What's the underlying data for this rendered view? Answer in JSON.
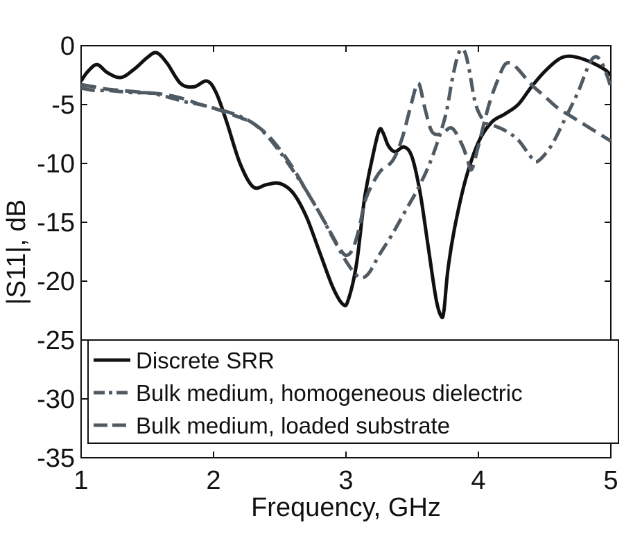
{
  "chart_data": {
    "type": "line",
    "xlabel": "Frequency, GHz",
    "ylabel": "|S11|, dB",
    "xlim": [
      1,
      5
    ],
    "ylim": [
      -35,
      0
    ],
    "xticks": [
      1,
      2,
      3,
      4,
      5
    ],
    "yticks": [
      0,
      -5,
      -10,
      -15,
      -20,
      -25,
      -30,
      -35
    ],
    "grid": false,
    "legend_position": "bottom",
    "series": [
      {
        "name": "Discrete SRR",
        "style": "solid",
        "color": "#111111",
        "x": [
          1.0,
          1.05,
          1.12,
          1.2,
          1.3,
          1.4,
          1.5,
          1.57,
          1.65,
          1.75,
          1.85,
          1.95,
          2.02,
          2.1,
          2.2,
          2.3,
          2.4,
          2.5,
          2.6,
          2.7,
          2.8,
          2.9,
          2.98,
          3.02,
          3.08,
          3.14,
          3.2,
          3.25,
          3.28,
          3.32,
          3.37,
          3.44,
          3.5,
          3.56,
          3.62,
          3.68,
          3.72,
          3.74,
          3.77,
          3.82,
          3.9,
          4.0,
          4.1,
          4.2,
          4.3,
          4.4,
          4.5,
          4.6,
          4.67,
          4.75,
          4.85,
          4.95,
          5.0
        ],
        "y": [
          -3.0,
          -2.2,
          -1.6,
          -2.3,
          -2.7,
          -2.0,
          -1.0,
          -0.6,
          -1.5,
          -3.2,
          -3.5,
          -3.0,
          -4.0,
          -6.5,
          -10.0,
          -12.0,
          -11.8,
          -11.7,
          -12.5,
          -14.5,
          -17.5,
          -20.5,
          -22.0,
          -21.5,
          -18.5,
          -13.0,
          -9.5,
          -7.2,
          -7.4,
          -8.5,
          -9.0,
          -8.6,
          -9.5,
          -12.5,
          -17.0,
          -21.5,
          -23.0,
          -22.5,
          -19.0,
          -15.5,
          -11.5,
          -8.2,
          -6.5,
          -5.8,
          -5.0,
          -3.5,
          -2.2,
          -1.2,
          -0.9,
          -1.0,
          -1.4,
          -2.0,
          -2.5
        ]
      },
      {
        "name": "Bulk medium, homogeneous dielectric",
        "style": "dashdot",
        "color": "#505a63",
        "x": [
          1.0,
          1.1,
          1.2,
          1.3,
          1.4,
          1.5,
          1.6,
          1.7,
          1.8,
          1.9,
          2.0,
          2.1,
          2.2,
          2.3,
          2.4,
          2.5,
          2.6,
          2.7,
          2.8,
          2.9,
          3.0,
          3.08,
          3.13,
          3.18,
          3.25,
          3.35,
          3.45,
          3.55,
          3.65,
          3.75,
          3.8,
          3.84,
          3.87,
          3.9,
          3.93,
          3.98,
          4.05,
          4.12,
          4.2,
          4.3,
          4.4,
          4.45,
          4.55,
          4.65,
          4.75,
          4.82,
          4.87,
          4.92,
          4.97,
          5.0
        ],
        "y": [
          -3.6,
          -3.8,
          -3.8,
          -3.9,
          -4.0,
          -4.0,
          -4.2,
          -4.5,
          -4.8,
          -5.0,
          -5.3,
          -5.6,
          -6.0,
          -6.6,
          -7.6,
          -9.0,
          -10.6,
          -12.3,
          -14.2,
          -16.3,
          -18.3,
          -19.5,
          -19.7,
          -19.2,
          -17.8,
          -16.0,
          -14.0,
          -12.0,
          -9.5,
          -6.0,
          -3.0,
          -1.0,
          -0.3,
          -0.6,
          -2.0,
          -5.0,
          -6.5,
          -6.8,
          -7.2,
          -8.0,
          -9.5,
          -9.8,
          -8.5,
          -6.3,
          -4.0,
          -2.0,
          -1.0,
          -1.2,
          -2.5,
          -3.5
        ]
      },
      {
        "name": "Bulk medium, loaded substrate",
        "style": "dashed",
        "color": "#505a63",
        "x": [
          1.0,
          1.1,
          1.2,
          1.3,
          1.4,
          1.5,
          1.6,
          1.7,
          1.8,
          1.9,
          2.0,
          2.1,
          2.2,
          2.3,
          2.4,
          2.5,
          2.6,
          2.7,
          2.8,
          2.9,
          2.95,
          3.0,
          3.05,
          3.1,
          3.15,
          3.25,
          3.35,
          3.42,
          3.48,
          3.52,
          3.54,
          3.56,
          3.6,
          3.65,
          3.72,
          3.8,
          3.88,
          3.92,
          3.95,
          4.0,
          4.08,
          4.15,
          4.2,
          4.25,
          4.3,
          4.4,
          4.5,
          4.6,
          4.7,
          4.8,
          4.9,
          5.0
        ],
        "y": [
          -3.3,
          -3.5,
          -3.7,
          -3.8,
          -3.9,
          -4.0,
          -4.1,
          -4.3,
          -4.6,
          -5.0,
          -5.3,
          -5.7,
          -6.1,
          -6.6,
          -7.5,
          -8.8,
          -10.4,
          -12.3,
          -14.2,
          -16.2,
          -17.2,
          -17.8,
          -17.3,
          -15.5,
          -13.0,
          -10.8,
          -9.8,
          -8.0,
          -5.5,
          -3.8,
          -3.2,
          -3.5,
          -5.5,
          -7.3,
          -7.5,
          -7.0,
          -8.5,
          -9.8,
          -10.5,
          -8.5,
          -5.0,
          -2.8,
          -1.6,
          -1.5,
          -2.0,
          -3.3,
          -4.3,
          -5.3,
          -6.0,
          -6.7,
          -7.4,
          -8.1
        ]
      }
    ]
  }
}
